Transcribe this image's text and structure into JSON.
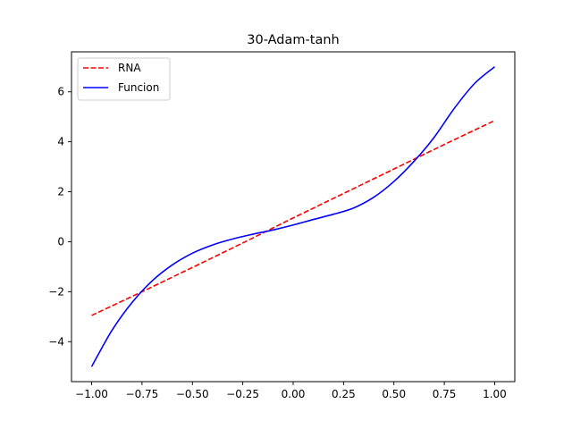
{
  "chart_data": {
    "type": "line",
    "title": "30-Adam-tanh",
    "xlabel": "",
    "ylabel": "",
    "xlim": [
      -1.1,
      1.1
    ],
    "ylim": [
      -5.6,
      7.6
    ],
    "xticks": [
      -1.0,
      -0.75,
      -0.5,
      -0.25,
      0.0,
      0.25,
      0.5,
      0.75,
      1.0
    ],
    "xtick_labels": [
      "−1.00",
      "−0.75",
      "−0.50",
      "−0.25",
      "0.00",
      "0.25",
      "0.50",
      "0.75",
      "1.00"
    ],
    "yticks": [
      -4,
      -2,
      0,
      2,
      4,
      6
    ],
    "ytick_labels": [
      "−4",
      "−2",
      "0",
      "2",
      "4",
      "6"
    ],
    "grid": false,
    "legend_position": "top-left",
    "series": [
      {
        "name": "RNA",
        "color": "#ff0000",
        "style": "dashed",
        "x": [
          -1.0,
          -0.75,
          -0.5,
          -0.25,
          0.0,
          0.25,
          0.5,
          0.75,
          1.0
        ],
        "y": [
          -2.95,
          -2.0,
          -1.03,
          -0.05,
          0.95,
          1.93,
          2.91,
          3.89,
          4.85
        ]
      },
      {
        "name": "Funcion",
        "color": "#0000ff",
        "style": "solid",
        "x": [
          -1.0,
          -0.9,
          -0.8,
          -0.7,
          -0.6,
          -0.5,
          -0.4,
          -0.3,
          -0.2,
          -0.1,
          0.0,
          0.1,
          0.2,
          0.3,
          0.4,
          0.5,
          0.6,
          0.7,
          0.8,
          0.9,
          1.0
        ],
        "y": [
          -5.0,
          -3.56,
          -2.44,
          -1.57,
          -0.93,
          -0.46,
          -0.13,
          0.11,
          0.3,
          0.47,
          0.67,
          0.89,
          1.1,
          1.35,
          1.78,
          2.41,
          3.22,
          4.18,
          5.34,
          6.33,
          7.0
        ]
      }
    ]
  }
}
